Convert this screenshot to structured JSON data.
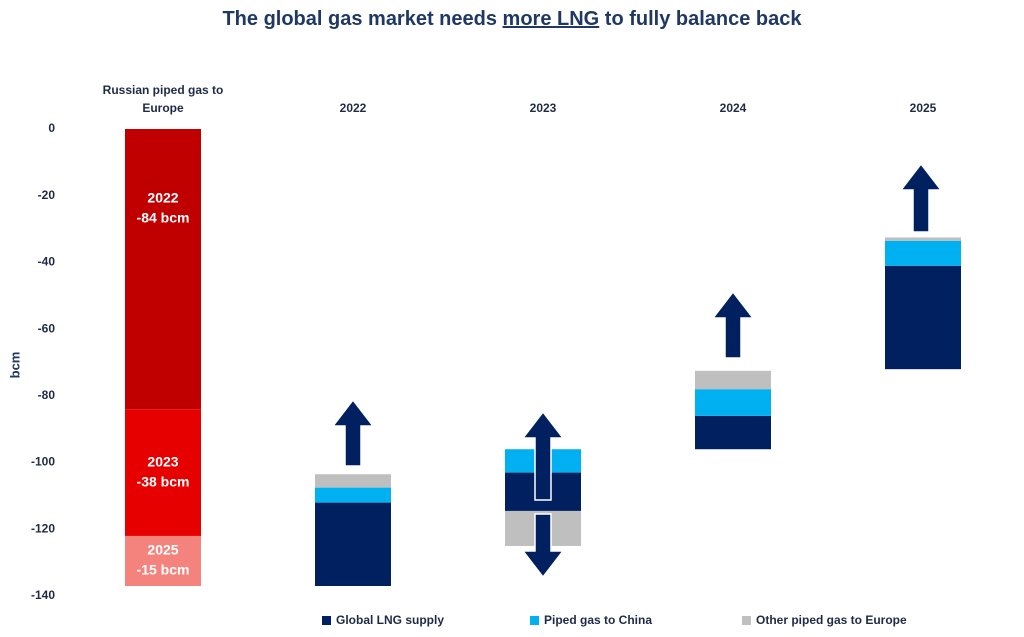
{
  "chart_data": {
    "type": "waterfall",
    "title": [
      "The global gas market needs ",
      "more LNG",
      " to fully balance back"
    ],
    "y_label": "bcm",
    "ylim": [
      -140,
      0
    ],
    "yticks": [
      0,
      -20,
      -40,
      -60,
      -80,
      -100,
      -120,
      -140
    ],
    "categories": [
      "Russian piped gas to Europe",
      "2022",
      "2023",
      "2024",
      "2025"
    ],
    "russian": {
      "names": [
        "2022",
        "2023",
        "2025"
      ],
      "values": [
        -84,
        -38,
        -15
      ],
      "value_labels": [
        "-84 bcm",
        "-38 bcm",
        "-15 bcm"
      ],
      "colors": [
        "#c00000",
        "#e60000",
        "#f4837d"
      ]
    },
    "bases": [
      null,
      -137,
      -114.5,
      -96,
      -72
    ],
    "series": [
      {
        "name": "Global LNG supply",
        "color": "#002060",
        "values": [
          null,
          25,
          11.5,
          10,
          31
        ]
      },
      {
        "name": "Piped gas to China",
        "color": "#00b0f0",
        "values": [
          null,
          4.5,
          7,
          8,
          7.5
        ]
      },
      {
        "name": "Other piped gas to Europe",
        "color": "#bfbfbf",
        "values": [
          null,
          4,
          -10.5,
          5.5,
          1
        ]
      }
    ]
  }
}
